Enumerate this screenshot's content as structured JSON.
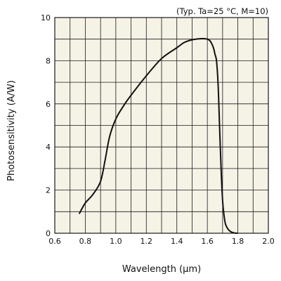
{
  "chart_data": {
    "type": "line",
    "annotation": "(Typ. Ta=25 °C, M=10)",
    "xlabel": "Wavelength (μm)",
    "ylabel": "Photosensitivity (A/W)",
    "xlim": [
      0.6,
      2.0
    ],
    "ylim": [
      0,
      10
    ],
    "xticks": [
      "0.6",
      "0.8",
      "1.0",
      "1.2",
      "1.4",
      "1.6",
      "1.8",
      "2.0"
    ],
    "yticks": [
      "0",
      "2",
      "4",
      "6",
      "8",
      "10"
    ],
    "grid": true,
    "colors": {
      "plot_background": "#f5f2e6",
      "grid": "#1a1a1a",
      "line": "#111111"
    },
    "series": [
      {
        "x": [
          0.76,
          0.8,
          0.85,
          0.9,
          0.93,
          0.96,
          1.0,
          1.05,
          1.1,
          1.2,
          1.3,
          1.4,
          1.45,
          1.5,
          1.55,
          1.58,
          1.6,
          1.62,
          1.64,
          1.65,
          1.66,
          1.67,
          1.68,
          1.69,
          1.7,
          1.71,
          1.72,
          1.74,
          1.76,
          1.78,
          1.8
        ],
        "y": [
          0.9,
          1.4,
          1.8,
          2.4,
          3.4,
          4.5,
          5.3,
          5.9,
          6.4,
          7.3,
          8.1,
          8.6,
          8.85,
          8.97,
          9.02,
          9.02,
          9.0,
          8.9,
          8.6,
          8.3,
          8.0,
          7.0,
          5.0,
          3.0,
          1.5,
          0.8,
          0.4,
          0.15,
          0.05,
          0.01,
          0.0
        ]
      }
    ]
  }
}
